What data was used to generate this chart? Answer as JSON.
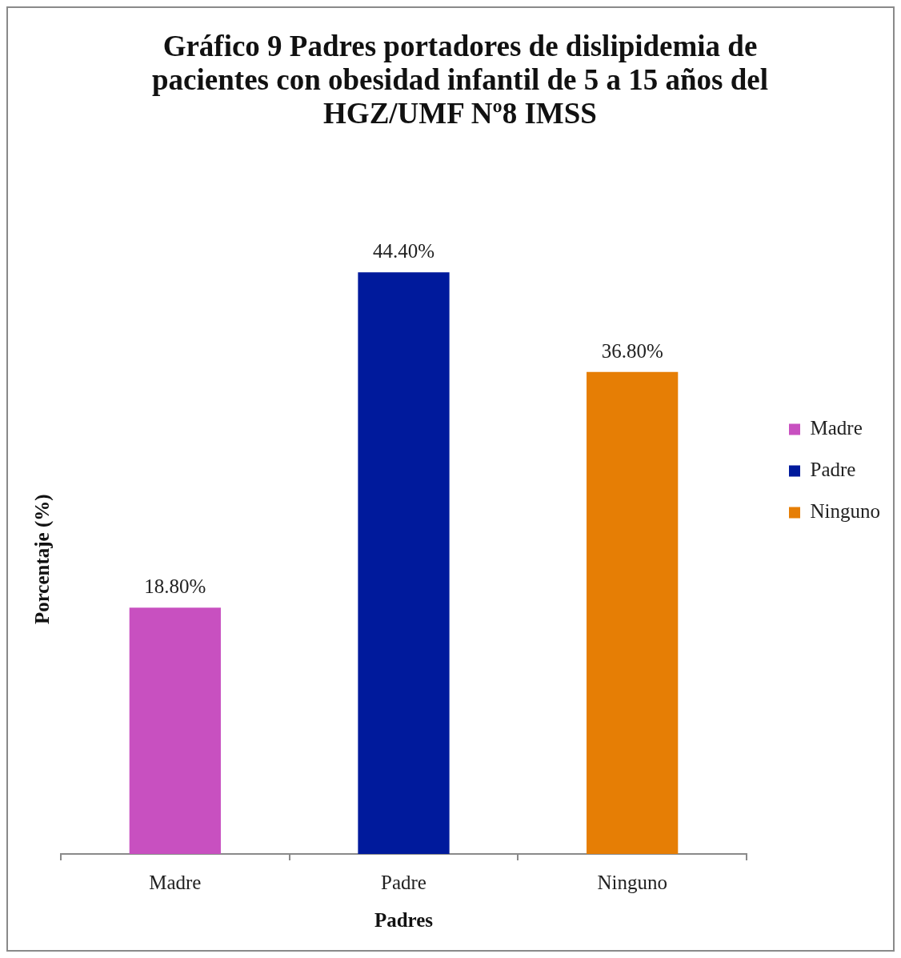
{
  "chart_data": {
    "type": "bar",
    "title": "Gráfico 9 Padres portadores de dislipidemia de pacientes con obesidad infantil de 5 a 15 años del HGZ/UMF Nº8 IMSS",
    "xlabel": "Padres",
    "ylabel": "Porcentaje (%)",
    "categories": [
      "Madre",
      "Padre",
      "Ninguno"
    ],
    "series": [
      {
        "name": "Madre",
        "color": "#c850c0",
        "values": [
          18.8,
          null,
          null
        ],
        "value_labels": [
          "18.80%",
          null,
          null
        ]
      },
      {
        "name": "Padre",
        "color": "#001a9c",
        "values": [
          null,
          44.4,
          null
        ],
        "value_labels": [
          null,
          "44.40%",
          null
        ]
      },
      {
        "name": "Ninguno",
        "color": "#e67e05",
        "values": [
          null,
          null,
          36.8
        ],
        "value_labels": [
          null,
          null,
          "36.80%"
        ]
      }
    ],
    "legend": "right",
    "tick_labels": "x"
  }
}
